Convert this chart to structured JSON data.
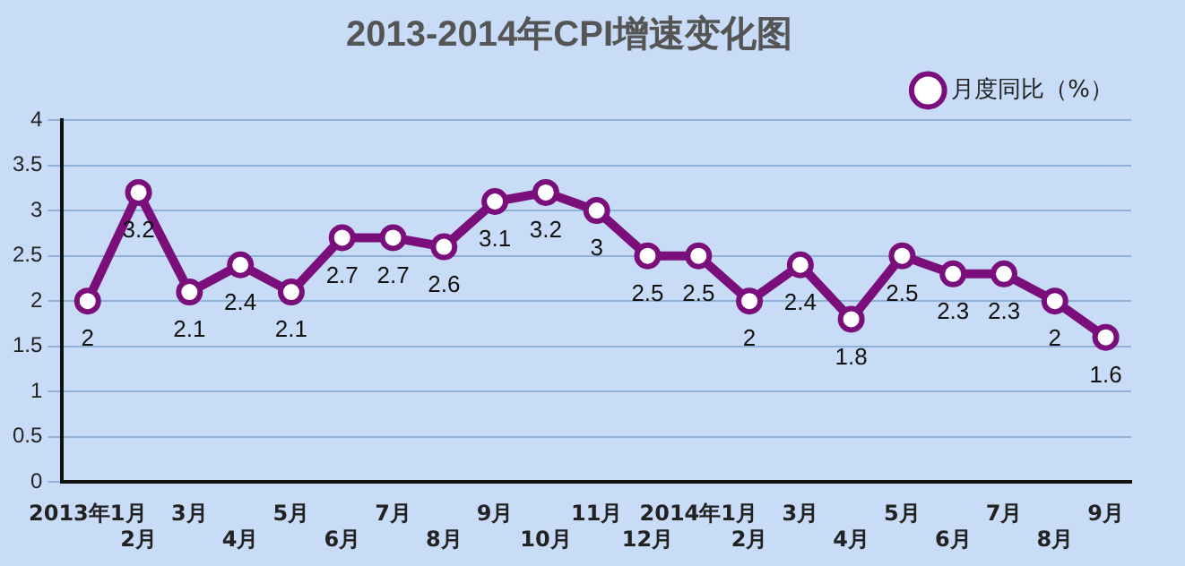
{
  "chart_data": {
    "type": "line",
    "title": "2013-2014年CPI增速变化图",
    "categories": [
      "2013年1月",
      "2月",
      "3月",
      "4月",
      "5月",
      "6月",
      "7月",
      "8月",
      "9月",
      "10月",
      "11月",
      "12月",
      "2014年1月",
      "2月",
      "3月",
      "4月",
      "5月",
      "6月",
      "7月",
      "8月",
      "9月"
    ],
    "series": [
      {
        "name": "月度同比（%）",
        "color": "#7a0f7c",
        "values": [
          2,
          3.2,
          2.1,
          2.4,
          2.1,
          2.7,
          2.7,
          2.6,
          3.1,
          3.2,
          3,
          2.5,
          2.5,
          2,
          2.4,
          1.8,
          2.5,
          2.3,
          2.3,
          2,
          1.6
        ]
      }
    ],
    "ylim": [
      0,
      4
    ],
    "yticks": [
      0,
      0.5,
      1,
      1.5,
      2,
      2.5,
      3,
      3.5,
      4
    ],
    "grid": "y",
    "legend": "top right",
    "marker": "circle",
    "line_style": "solid",
    "data_labels": true
  }
}
